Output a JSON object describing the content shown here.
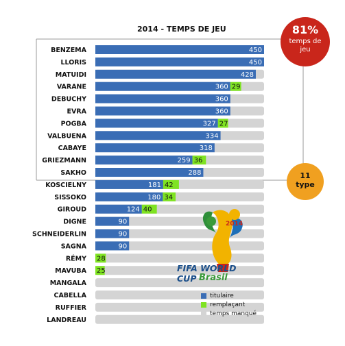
{
  "chart_data": {
    "type": "bar",
    "title": "2014 - TEMPS DE JEU",
    "max_minutes": 450,
    "colors": {
      "titulaire": "#3a6db5",
      "remplacant": "#7fe322",
      "manque": "#d4d4d4"
    },
    "players": [
      {
        "name": "BENZEMA",
        "titulaire": 450,
        "remplacant": 0
      },
      {
        "name": "LLORIS",
        "titulaire": 450,
        "remplacant": 0
      },
      {
        "name": "MATUIDI",
        "titulaire": 428,
        "remplacant": 0
      },
      {
        "name": "VARANE",
        "titulaire": 360,
        "remplacant": 29
      },
      {
        "name": "DEBUCHY",
        "titulaire": 360,
        "remplacant": 0
      },
      {
        "name": "EVRA",
        "titulaire": 360,
        "remplacant": 0
      },
      {
        "name": "POGBA",
        "titulaire": 327,
        "remplacant": 27
      },
      {
        "name": "VALBUENA",
        "titulaire": 334,
        "remplacant": 0
      },
      {
        "name": "CABAYE",
        "titulaire": 318,
        "remplacant": 0
      },
      {
        "name": "GRIEZMANN",
        "titulaire": 259,
        "remplacant": 36
      },
      {
        "name": "SAKHO",
        "titulaire": 288,
        "remplacant": 0
      },
      {
        "name": "KOSCIELNY",
        "titulaire": 181,
        "remplacant": 42
      },
      {
        "name": "SISSOKO",
        "titulaire": 180,
        "remplacant": 34
      },
      {
        "name": "GIROUD",
        "titulaire": 124,
        "remplacant": 40
      },
      {
        "name": "DIGNE",
        "titulaire": 90,
        "remplacant": 0
      },
      {
        "name": "SCHNEIDERLIN",
        "titulaire": 90,
        "remplacant": 0
      },
      {
        "name": "SAGNA",
        "titulaire": 90,
        "remplacant": 0
      },
      {
        "name": "RÉMY",
        "titulaire": 0,
        "remplacant": 28
      },
      {
        "name": "MAVUBA",
        "titulaire": 0,
        "remplacant": 25
      },
      {
        "name": "MANGALA",
        "titulaire": 0,
        "remplacant": 0
      },
      {
        "name": "CABELLA",
        "titulaire": 0,
        "remplacant": 0
      },
      {
        "name": "RUFFIER",
        "titulaire": 0,
        "remplacant": 0
      },
      {
        "name": "LANDREAU",
        "titulaire": 0,
        "remplacant": 0
      }
    ],
    "legend": [
      "titulaire",
      "remplaçant",
      "temps manqué"
    ],
    "legend_placement": "bottom-right",
    "grid": false
  },
  "badge_pct": {
    "value": "81%",
    "text": "temps de jeu"
  },
  "badge_type": {
    "line1": "11",
    "line2": "type"
  },
  "logo": {
    "line1": "FIFA WORLD CUP",
    "line2": "Brasil",
    "year": "2014"
  }
}
